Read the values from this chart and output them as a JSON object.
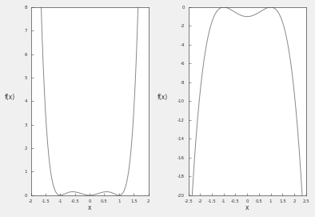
{
  "left_xlim": [
    -2,
    2
  ],
  "left_ylim": [
    0,
    8
  ],
  "left_xticks": [
    -2,
    -1.5,
    -1,
    -0.5,
    0,
    0.5,
    1,
    1.5,
    2
  ],
  "left_yticks": [
    0,
    1,
    2,
    3,
    4,
    5,
    6,
    7,
    8
  ],
  "left_xlabel": "x",
  "left_ylabel": "f(x)",
  "right_xlim": [
    -2.5,
    2.5
  ],
  "right_ylim": [
    -20,
    0
  ],
  "right_xticks": [
    -2.5,
    -2,
    -1.5,
    -1,
    -0.5,
    0,
    0.5,
    1,
    1.5,
    2,
    2.5
  ],
  "right_yticks": [
    0,
    -2,
    -4,
    -6,
    -8,
    -10,
    -12,
    -14,
    -16,
    -18,
    -20
  ],
  "right_xlabel": "x",
  "right_ylabel": "f(x)",
  "line_color": "#888888",
  "bg_color": "#ffffff",
  "fig_bg": "#f0f0f0"
}
